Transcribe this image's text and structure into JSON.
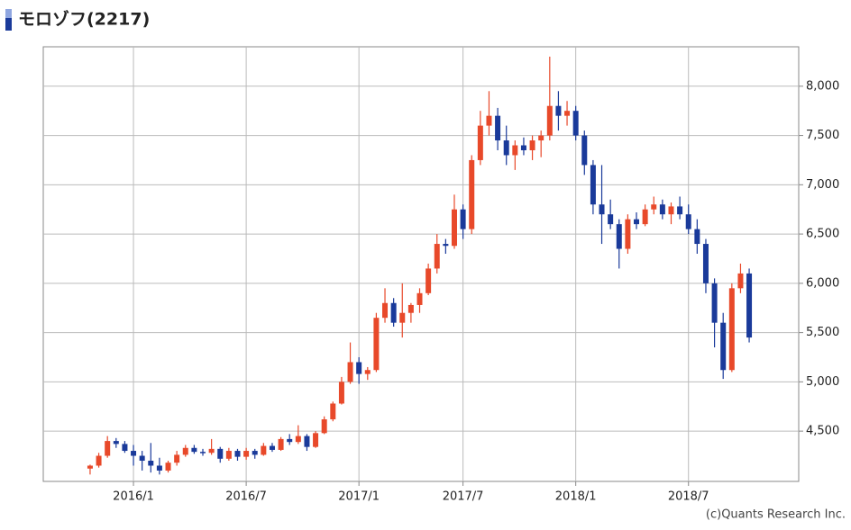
{
  "chart_data": {
    "type": "candlestick",
    "title": "モロゾフ(2217)",
    "credit": "(c)Quants Research Inc.",
    "up_color": "#e8492a",
    "down_color": "#1a3a9a",
    "grid": true,
    "categories": [
      null,
      null,
      null,
      null,
      null,
      "2016/1",
      null,
      null,
      null,
      null,
      null,
      null,
      null,
      null,
      null,
      null,
      null,
      null,
      "2016/7",
      null,
      null,
      null,
      null,
      null,
      null,
      null,
      null,
      null,
      null,
      null,
      null,
      "2017/1",
      null,
      null,
      null,
      null,
      null,
      null,
      null,
      null,
      null,
      null,
      null,
      "2017/7",
      null,
      null,
      null,
      null,
      null,
      null,
      null,
      null,
      null,
      null,
      null,
      null,
      "2018/1",
      null,
      null,
      null,
      null,
      null,
      null,
      null,
      null,
      null,
      null,
      null,
      null,
      "2018/7",
      null,
      null,
      null,
      null,
      null,
      null,
      null
    ],
    "open": [
      4120,
      4150,
      4250,
      4400,
      4370,
      4300,
      4250,
      4200,
      4150,
      4100,
      4180,
      4260,
      4330,
      4290,
      4280,
      4320,
      4220,
      4300,
      4240,
      4300,
      4260,
      4350,
      4310,
      4420,
      4390,
      4450,
      4340,
      4480,
      4620,
      4780,
      5000,
      5200,
      5080,
      5120,
      5650,
      5800,
      5600,
      5700,
      5780,
      5900,
      6150,
      6400,
      6380,
      6750,
      6550,
      7250,
      7600,
      7700,
      7450,
      7300,
      7400,
      7350,
      7450,
      7500,
      7800,
      7700,
      7750,
      7500,
      7200,
      6800,
      6700,
      6600,
      6350,
      6650,
      6600,
      6750,
      6800,
      6700,
      6780,
      6700,
      6550,
      6400,
      6000,
      5600,
      5120,
      5950,
      6100
    ],
    "high": [
      4160,
      4280,
      4450,
      4430,
      4400,
      4360,
      4300,
      4380,
      4230,
      4200,
      4300,
      4360,
      4360,
      4320,
      4420,
      4340,
      4330,
      4320,
      4330,
      4320,
      4380,
      4380,
      4440,
      4470,
      4560,
      4470,
      4500,
      4650,
      4800,
      5050,
      5400,
      5250,
      5150,
      5700,
      5950,
      5850,
      6000,
      5800,
      5950,
      6200,
      6500,
      6450,
      6900,
      6800,
      7300,
      7750,
      7950,
      7780,
      7600,
      7450,
      7480,
      7500,
      7550,
      8300,
      7950,
      7850,
      7800,
      7550,
      7250,
      7200,
      6850,
      6650,
      6700,
      6720,
      6800,
      6880,
      6850,
      6820,
      6880,
      6800,
      6650,
      6450,
      6050,
      5700,
      6000,
      6200,
      6150
    ],
    "low": [
      4060,
      4130,
      4230,
      4330,
      4280,
      4150,
      4100,
      4080,
      4060,
      4080,
      4150,
      4240,
      4270,
      4250,
      4260,
      4180,
      4200,
      4200,
      4210,
      4220,
      4250,
      4290,
      4300,
      4360,
      4370,
      4300,
      4330,
      4470,
      4600,
      4770,
      4980,
      4980,
      5020,
      5100,
      5600,
      5560,
      5450,
      5600,
      5700,
      5880,
      6100,
      6300,
      6350,
      6450,
      6500,
      7200,
      7500,
      7350,
      7200,
      7150,
      7300,
      7250,
      7280,
      7450,
      7550,
      7600,
      7450,
      7100,
      6700,
      6400,
      6550,
      6150,
      6300,
      6550,
      6580,
      6700,
      6650,
      6600,
      6650,
      6500,
      6300,
      5900,
      5350,
      5030,
      5100,
      5900,
      5400
    ],
    "close": [
      4150,
      4250,
      4400,
      4370,
      4300,
      4250,
      4200,
      4150,
      4100,
      4180,
      4260,
      4330,
      4290,
      4280,
      4320,
      4220,
      4300,
      4240,
      4300,
      4260,
      4350,
      4310,
      4420,
      4390,
      4450,
      4340,
      4480,
      4620,
      4780,
      5000,
      5200,
      5080,
      5120,
      5650,
      5800,
      5600,
      5700,
      5780,
      5900,
      6150,
      6400,
      6380,
      6750,
      6550,
      7250,
      7600,
      7700,
      7450,
      7300,
      7400,
      7350,
      7450,
      7500,
      7800,
      7700,
      7750,
      7500,
      7200,
      6800,
      6700,
      6600,
      6350,
      6650,
      6600,
      6750,
      6800,
      6700,
      6780,
      6700,
      6550,
      6400,
      6000,
      5600,
      5120,
      5950,
      6100,
      5450
    ],
    "ylim": [
      3990,
      8400
    ],
    "yticks": [
      {
        "value": 4500,
        "label": "4,500"
      },
      {
        "value": 5000,
        "label": "5,000"
      },
      {
        "value": 5500,
        "label": "5,500"
      },
      {
        "value": 6000,
        "label": "6,000"
      },
      {
        "value": 6500,
        "label": "6,500"
      },
      {
        "value": 7000,
        "label": "7,000"
      },
      {
        "value": 7500,
        "label": "7,500"
      },
      {
        "value": 8000,
        "label": "8,000"
      }
    ]
  }
}
